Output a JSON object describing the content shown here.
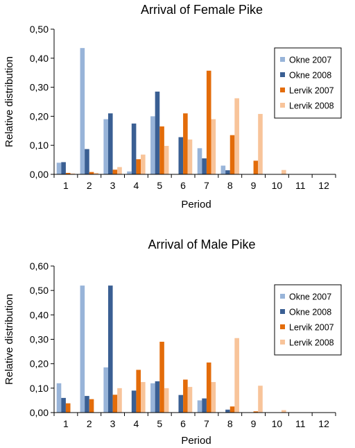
{
  "chart_data": [
    {
      "type": "bar",
      "title": "Arrival of Female Pike",
      "xlabel": "Period",
      "ylabel": "Relative distribution",
      "ylim": [
        0,
        0.5
      ],
      "yticks": [
        "0,00",
        "0,10",
        "0,20",
        "0,30",
        "0,40",
        "0,50"
      ],
      "categories": [
        "1",
        "2",
        "3",
        "4",
        "5",
        "6",
        "7",
        "8",
        "9",
        "10",
        "11",
        "12"
      ],
      "legend_position": "right",
      "series": [
        {
          "name": "Okne 2007",
          "color": "#98b4d9",
          "values": [
            0.04,
            0.435,
            0.19,
            0.01,
            0.2,
            0,
            0.09,
            0.03,
            0,
            0,
            0,
            0
          ]
        },
        {
          "name": "Okne 2008",
          "color": "#3a5f93",
          "values": [
            0.042,
            0.087,
            0.21,
            0.175,
            0.285,
            0.128,
            0.055,
            0.014,
            0,
            0,
            0,
            0
          ]
        },
        {
          "name": "Lervik 2007",
          "color": "#e36c0a",
          "values": [
            0.005,
            0.008,
            0.016,
            0.052,
            0.165,
            0.21,
            0.357,
            0.135,
            0.047,
            0,
            0,
            0
          ]
        },
        {
          "name": "Lervik 2008",
          "color": "#f8c49a",
          "values": [
            0.003,
            0.005,
            0.025,
            0.068,
            0.098,
            0.12,
            0.19,
            0.262,
            0.208,
            0.015,
            0,
            0
          ]
        }
      ]
    },
    {
      "type": "bar",
      "title": "Arrival of Male Pike",
      "xlabel": "Period",
      "ylabel": "Relative distribution",
      "ylim": [
        0,
        0.6
      ],
      "yticks": [
        "0,00",
        "0,10",
        "0,20",
        "0,30",
        "0,40",
        "0,50",
        "0,60"
      ],
      "categories": [
        "1",
        "2",
        "3",
        "4",
        "5",
        "6",
        "7",
        "8",
        "9",
        "10",
        "11",
        "12"
      ],
      "legend_position": "right",
      "series": [
        {
          "name": "Okne 2007",
          "color": "#98b4d9",
          "values": [
            0.12,
            0.52,
            0.185,
            0,
            0.12,
            0,
            0.05,
            0,
            0,
            0,
            0,
            0
          ]
        },
        {
          "name": "Okne 2008",
          "color": "#3a5f93",
          "values": [
            0.06,
            0.068,
            0.52,
            0.09,
            0.128,
            0.072,
            0.058,
            0.012,
            0,
            0,
            0,
            0
          ]
        },
        {
          "name": "Lervik 2007",
          "color": "#e36c0a",
          "values": [
            0.038,
            0.055,
            0.073,
            0.175,
            0.29,
            0.135,
            0.205,
            0.025,
            0.005,
            0,
            0,
            0
          ]
        },
        {
          "name": "Lervik 2008",
          "color": "#f8c49a",
          "values": [
            0,
            0,
            0.1,
            0.125,
            0.1,
            0.105,
            0.125,
            0.305,
            0.11,
            0.01,
            0,
            0
          ]
        }
      ]
    }
  ]
}
